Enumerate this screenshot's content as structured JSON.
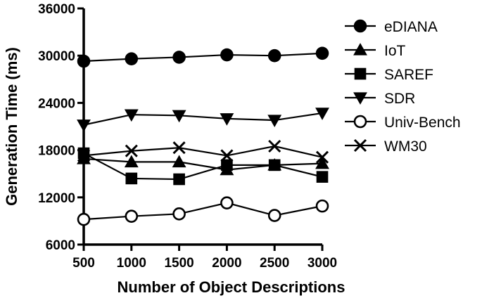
{
  "chart_data": {
    "type": "line",
    "title": "",
    "xlabel": "Number of Object Descriptions",
    "ylabel": "Generation Time (ms)",
    "x": [
      500,
      1000,
      1500,
      2000,
      2500,
      3000
    ],
    "xlim": [
      500,
      3000
    ],
    "ylim": [
      6000,
      36000
    ],
    "xticks": [
      500,
      1000,
      1500,
      2000,
      2500,
      3000
    ],
    "yticks": [
      6000,
      12000,
      18000,
      24000,
      30000,
      36000
    ],
    "grid": false,
    "legend_position": "right",
    "series": [
      {
        "name": "eDIANA",
        "marker": "circle-filled",
        "values": [
          29300,
          29600,
          29800,
          30100,
          30000,
          30300
        ]
      },
      {
        "name": "IoT",
        "marker": "triangle-up",
        "values": [
          16900,
          16500,
          16500,
          15500,
          16100,
          16300
        ]
      },
      {
        "name": "SAREF",
        "marker": "square-filled",
        "values": [
          17600,
          14400,
          14300,
          16100,
          16100,
          14600
        ]
      },
      {
        "name": "SDR",
        "marker": "triangle-down",
        "values": [
          21200,
          22500,
          22400,
          22000,
          21800,
          22700
        ]
      },
      {
        "name": "Univ-Bench",
        "marker": "circle-open",
        "values": [
          9200,
          9600,
          9900,
          11300,
          9700,
          10900
        ]
      },
      {
        "name": "WM30",
        "marker": "x",
        "values": [
          17300,
          17900,
          18300,
          17300,
          18500,
          17100
        ]
      }
    ]
  }
}
